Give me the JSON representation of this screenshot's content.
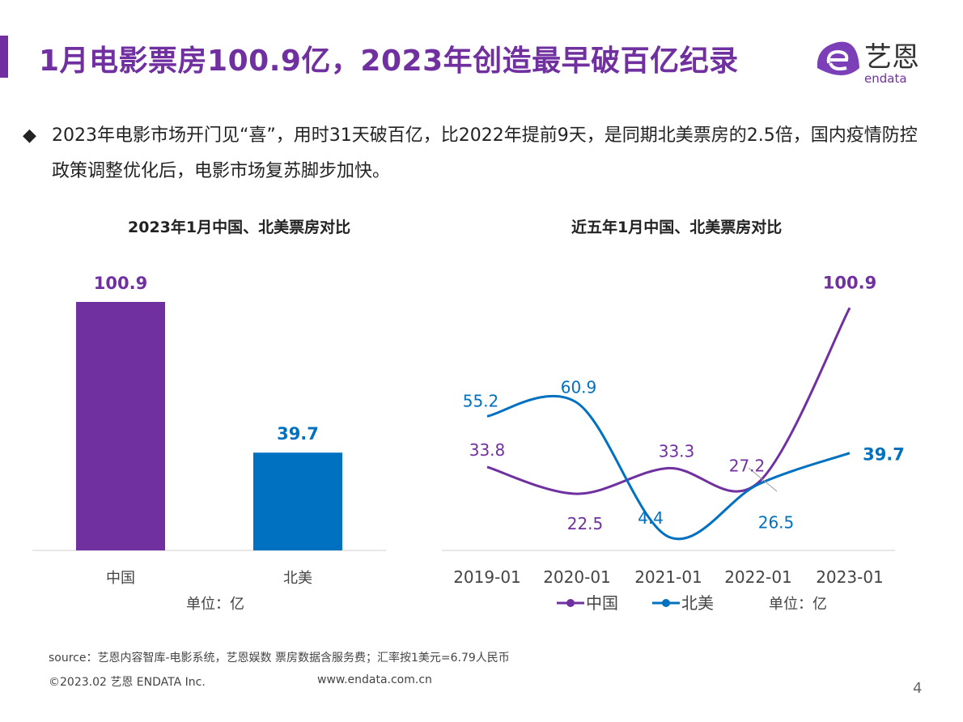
{
  "title": "1月电影票房100.9亿，2023年创造最早破百亿纪录",
  "logo": {
    "text": "艺恩",
    "sub": "endata"
  },
  "bullet": "2023年电影市场开门见“喜”，用时31天破百亿，比2022年提前9天，是同期北美票房的2.5倍，国内疫情防控政策调整优化后，电影市场复苏脚步加快。",
  "colors": {
    "china": "#7030A0",
    "na": "#0070C0"
  },
  "chart_data": [
    {
      "type": "bar",
      "title": "2023年1月中国、北美票房对比",
      "categories": [
        "中国",
        "北美"
      ],
      "values": [
        100.9,
        39.7
      ],
      "colors": [
        "#7030A0",
        "#0070C0"
      ],
      "unit": "单位：亿",
      "ylim": [
        0,
        100.9
      ]
    },
    {
      "type": "line",
      "title": "近五年1月中国、北美票房对比",
      "categories": [
        "2019-01",
        "2020-01",
        "2021-01",
        "2022-01",
        "2023-01"
      ],
      "series": [
        {
          "name": "中国",
          "color": "#7030A0",
          "values": [
            33.8,
            22.5,
            33.3,
            27.2,
            100.9
          ]
        },
        {
          "name": "北美",
          "color": "#0070C0",
          "values": [
            55.2,
            60.9,
            4.4,
            26.5,
            39.7
          ]
        }
      ],
      "unit": "单位：亿",
      "smooth": true,
      "legend": "bottom"
    }
  ],
  "footer": {
    "source": "source：艺恩内容智库-电影系统，艺恩娱数    票房数据含服务费；汇率按1美元=6.79人民币",
    "copyright": "©2023.02 艺恩 ENDATA Inc.",
    "url": "www.endata.com.cn",
    "page": "4"
  }
}
